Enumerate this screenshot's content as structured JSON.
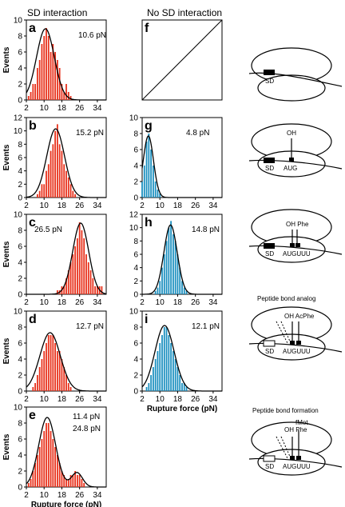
{
  "headers": {
    "left": "SD interaction",
    "middle": "No SD interaction"
  },
  "colors": {
    "sd": "#e8301a",
    "nosd": "#1a8fbf",
    "curve": "#000000"
  },
  "chart_data": [
    {
      "id": "a",
      "type": "bar",
      "label": "a",
      "annotations": [
        "10.6 pN"
      ],
      "bar_color": "sd",
      "x": [
        3,
        4,
        5,
        6,
        7,
        8,
        9,
        10,
        11,
        12,
        13,
        14,
        15,
        16,
        17,
        18,
        19,
        20,
        21,
        22
      ],
      "values": [
        0.5,
        1,
        2,
        2,
        4,
        5,
        7,
        8,
        9,
        8,
        6,
        7,
        6,
        5,
        4,
        2,
        1,
        2,
        1,
        0.5
      ],
      "fit": [
        {
          "amp": 8.9,
          "mean": 10.6,
          "sd": 4
        }
      ],
      "xlim": [
        2,
        38
      ],
      "ylim": [
        0,
        10
      ],
      "xticks": [
        2,
        10,
        18,
        26,
        34
      ],
      "yticks": [
        0,
        2,
        4,
        6,
        8,
        10
      ],
      "ylabel": "Events",
      "xlabel": ""
    },
    {
      "id": "b",
      "type": "bar",
      "label": "b",
      "annotations": [
        "15.2 pN"
      ],
      "bar_color": "sd",
      "x": [
        7,
        8,
        9,
        10,
        11,
        12,
        13,
        14,
        15,
        16,
        17,
        18,
        19,
        20,
        21,
        22,
        23,
        24
      ],
      "values": [
        0.5,
        1,
        2,
        2,
        4,
        5,
        7,
        8,
        10,
        11,
        8,
        7,
        5,
        4,
        3,
        2,
        1,
        0.5
      ],
      "fit": [
        {
          "amp": 10.3,
          "mean": 15.2,
          "sd": 4
        }
      ],
      "xlim": [
        2,
        38
      ],
      "ylim": [
        0,
        12
      ],
      "xticks": [
        2,
        10,
        18,
        26,
        34
      ],
      "yticks": [
        0,
        2,
        4,
        6,
        8,
        10,
        12
      ],
      "ylabel": "Events",
      "xlabel": ""
    },
    {
      "id": "c",
      "type": "bar",
      "label": "c",
      "annotations": [
        "26.5 pN"
      ],
      "bar_color": "sd",
      "x": [
        16,
        17,
        18,
        19,
        20,
        21,
        22,
        23,
        24,
        25,
        26,
        27,
        28,
        29,
        30,
        31,
        32,
        33,
        34,
        35,
        36
      ],
      "values": [
        0.5,
        0.5,
        1,
        1,
        2,
        3,
        4,
        5,
        6,
        7,
        9,
        8,
        7,
        5,
        4,
        3,
        2,
        1,
        1,
        1,
        1
      ],
      "fit": [
        {
          "amp": 8.9,
          "mean": 26.5,
          "sd": 3.6
        }
      ],
      "xlim": [
        2,
        38
      ],
      "ylim": [
        0,
        10
      ],
      "xticks": [
        2,
        10,
        18,
        26,
        34
      ],
      "yticks": [
        0,
        2,
        4,
        6,
        8,
        10
      ],
      "ylabel": "Events",
      "xlabel": ""
    },
    {
      "id": "d",
      "type": "bar",
      "label": "d",
      "annotations": [
        "12.7 pN"
      ],
      "bar_color": "sd",
      "x": [
        5,
        6,
        7,
        8,
        9,
        10,
        11,
        12,
        13,
        14,
        15,
        16,
        17,
        18,
        19,
        20,
        21,
        22
      ],
      "values": [
        0.5,
        1,
        2,
        3,
        4,
        5,
        6,
        7,
        7,
        7,
        6,
        5,
        5,
        4,
        3,
        2,
        1,
        0.5
      ],
      "fit": [
        {
          "amp": 7.3,
          "mean": 12.7,
          "sd": 4.6
        }
      ],
      "xlim": [
        2,
        38
      ],
      "ylim": [
        0,
        10
      ],
      "xticks": [
        2,
        10,
        18,
        26,
        34
      ],
      "yticks": [
        0,
        2,
        4,
        6,
        8,
        10
      ],
      "ylabel": "Events",
      "xlabel": ""
    },
    {
      "id": "e",
      "type": "bar",
      "label": "e",
      "annotations": [
        "11.4 pN",
        "24.8 pN"
      ],
      "bar_color": "sd",
      "x": [
        3,
        4,
        5,
        6,
        7,
        8,
        9,
        10,
        11,
        12,
        13,
        14,
        15,
        16,
        17,
        18,
        19,
        20,
        21,
        22,
        23,
        24,
        25,
        26,
        27,
        28
      ],
      "values": [
        0.5,
        1,
        2,
        3,
        4,
        5,
        6,
        7,
        8,
        8,
        7,
        6,
        5,
        4,
        3,
        2,
        1.5,
        1,
        1,
        1.5,
        1.5,
        2,
        1.5,
        1.5,
        1,
        0.5
      ],
      "fit": [
        {
          "amp": 8.7,
          "mean": 11.4,
          "sd": 3.8
        },
        {
          "amp": 1.8,
          "mean": 24.8,
          "sd": 2.5
        }
      ],
      "xlim": [
        2,
        38
      ],
      "ylim": [
        0,
        10
      ],
      "xticks": [
        2,
        10,
        18,
        26,
        34
      ],
      "yticks": [
        0,
        2,
        4,
        6,
        8,
        10
      ],
      "ylabel": "Events",
      "xlabel": "Rupture force (pN)"
    },
    {
      "id": "f",
      "type": "empty",
      "label": "f",
      "annotations": []
    },
    {
      "id": "g",
      "type": "bar",
      "label": "g",
      "annotations": [
        "4.8 pN"
      ],
      "bar_color": "nosd",
      "x": [
        2,
        3,
        4,
        5,
        6,
        7,
        8,
        9,
        10
      ],
      "values": [
        2,
        4,
        7,
        8,
        6,
        4,
        2,
        1,
        0.5
      ],
      "fit": [
        {
          "amp": 7.7,
          "mean": 4.8,
          "sd": 2.3
        }
      ],
      "xlim": [
        2,
        38
      ],
      "ylim": [
        0,
        10
      ],
      "xticks": [
        2,
        10,
        18,
        26,
        34
      ],
      "yticks": [
        0,
        2,
        4,
        6,
        8,
        10
      ],
      "ylabel": "",
      "xlabel": ""
    },
    {
      "id": "h",
      "type": "bar",
      "label": "h",
      "annotations": [
        "14.8 pN"
      ],
      "bar_color": "nosd",
      "x": [
        8,
        9,
        10,
        11,
        12,
        13,
        14,
        15,
        16,
        17,
        18,
        19,
        20,
        21,
        22
      ],
      "values": [
        0.5,
        1,
        2,
        4,
        6,
        8,
        10,
        11,
        9,
        8,
        6,
        4,
        2,
        1,
        0.5
      ],
      "fit": [
        {
          "amp": 10.4,
          "mean": 14.8,
          "sd": 3
        }
      ],
      "xlim": [
        2,
        38
      ],
      "ylim": [
        0,
        12
      ],
      "xticks": [
        2,
        10,
        18,
        26,
        34
      ],
      "yticks": [
        0,
        2,
        4,
        6,
        8,
        10,
        12
      ],
      "ylabel": "",
      "xlabel": ""
    },
    {
      "id": "i",
      "type": "bar",
      "label": "i",
      "annotations": [
        "12.1 pN"
      ],
      "bar_color": "nosd",
      "x": [
        4,
        5,
        6,
        7,
        8,
        9,
        10,
        11,
        12,
        13,
        14,
        15,
        16,
        17,
        18,
        19,
        20,
        21,
        22
      ],
      "values": [
        0.5,
        1,
        2,
        3,
        4,
        5,
        6,
        7,
        8,
        8,
        7,
        6,
        5,
        4,
        3,
        2,
        1,
        1,
        0.5
      ],
      "fit": [
        {
          "amp": 8.2,
          "mean": 12.1,
          "sd": 4.3
        }
      ],
      "xlim": [
        2,
        38
      ],
      "ylim": [
        0,
        10
      ],
      "xticks": [
        2,
        10,
        18,
        26,
        34
      ],
      "yticks": [
        0,
        2,
        4,
        6,
        8,
        10
      ],
      "ylabel": "",
      "xlabel": "Rupture force (pN)"
    }
  ],
  "diagrams": [
    {
      "id": "d1",
      "title": "",
      "sd": "SD",
      "codon": "",
      "trna": []
    },
    {
      "id": "d2",
      "title": "",
      "sd": "SD",
      "codon": "AUG",
      "trna": [
        "OH"
      ]
    },
    {
      "id": "d3",
      "title": "",
      "sd": "SD",
      "codon": "AUGUUU",
      "trna": [
        "OH Phe"
      ]
    },
    {
      "id": "d4",
      "title": "Peptide bond analog",
      "sd": "SD",
      "codon": "AUGUUU",
      "trna": [
        "OH AcPhe"
      ]
    },
    {
      "id": "d5",
      "title": "Peptide bond formation",
      "sd": "SD",
      "codon": "AUGUUU",
      "trna": [
        "fMet",
        "OH Phe"
      ]
    }
  ]
}
